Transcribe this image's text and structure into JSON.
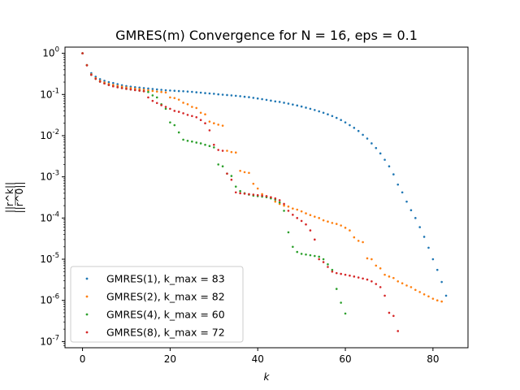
{
  "chart_data": {
    "type": "scatter",
    "title": "GMRES(m) Convergence for N = 16, eps = 0.1",
    "xlabel": "k",
    "ylabel_numerator": "||r^k||",
    "ylabel_denominator": "||r^0||",
    "xlim": [
      -4,
      88
    ],
    "ylim_log10": [
      -7.15,
      0.15
    ],
    "yscale": "log",
    "xticks": [
      0,
      20,
      40,
      60,
      80
    ],
    "yticks_exp": [
      0,
      -1,
      -2,
      -3,
      -4,
      -5,
      -6,
      -7
    ],
    "ytick_base": "10",
    "grid": false,
    "legend_position": "lower-left",
    "series": [
      {
        "name": "GMRES(1), k_max = 83",
        "color": "#1f77b4",
        "x": [
          0,
          1,
          2,
          3,
          4,
          5,
          6,
          7,
          8,
          9,
          10,
          11,
          12,
          13,
          14,
          15,
          16,
          17,
          18,
          19,
          20,
          21,
          22,
          23,
          24,
          25,
          26,
          27,
          28,
          29,
          30,
          31,
          32,
          33,
          34,
          35,
          36,
          37,
          38,
          39,
          40,
          41,
          42,
          43,
          44,
          45,
          46,
          47,
          48,
          49,
          50,
          51,
          52,
          53,
          54,
          55,
          56,
          57,
          58,
          59,
          60,
          61,
          62,
          63,
          64,
          65,
          66,
          67,
          68,
          69,
          70,
          71,
          72,
          73,
          74,
          75,
          76,
          77,
          78,
          79,
          80,
          81,
          82,
          83
        ],
        "y": [
          1.0,
          0.52,
          0.33,
          0.27,
          0.235,
          0.215,
          0.2,
          0.19,
          0.178,
          0.168,
          0.16,
          0.155,
          0.15,
          0.147,
          0.143,
          0.14,
          0.136,
          0.133,
          0.13,
          0.127,
          0.125,
          0.123,
          0.121,
          0.12,
          0.118,
          0.116,
          0.113,
          0.111,
          0.108,
          0.106,
          0.104,
          0.101,
          0.099,
          0.097,
          0.095,
          0.093,
          0.091,
          0.088,
          0.086,
          0.083,
          0.08,
          0.077,
          0.074,
          0.071,
          0.068,
          0.066,
          0.063,
          0.06,
          0.057,
          0.054,
          0.051,
          0.048,
          0.045,
          0.042,
          0.039,
          0.036,
          0.033,
          0.03,
          0.027,
          0.024,
          0.021,
          0.018,
          0.0155,
          0.013,
          0.0105,
          0.0085,
          0.0065,
          0.005,
          0.0037,
          0.0026,
          0.0018,
          0.00115,
          0.00065,
          0.00042,
          0.00025,
          0.000155,
          0.0001,
          6e-05,
          3.5e-05,
          1.9e-05,
          1e-05,
          5.5e-06,
          2.8e-06,
          1.3e-06
        ]
      },
      {
        "name": "GMRES(2), k_max = 82",
        "color": "#ff7f0e",
        "x": [
          0,
          1,
          2,
          3,
          4,
          5,
          6,
          7,
          8,
          9,
          10,
          11,
          12,
          13,
          14,
          15,
          16,
          17,
          18,
          19,
          20,
          21,
          22,
          23,
          24,
          25,
          26,
          27,
          28,
          29,
          30,
          31,
          32,
          33,
          34,
          35,
          36,
          37,
          38,
          39,
          40,
          41,
          42,
          43,
          44,
          45,
          46,
          47,
          48,
          49,
          50,
          51,
          52,
          53,
          54,
          55,
          56,
          57,
          58,
          59,
          60,
          61,
          62,
          63,
          64,
          65,
          66,
          67,
          68,
          69,
          70,
          71,
          72,
          73,
          74,
          75,
          76,
          77,
          78,
          79,
          80,
          81,
          82
        ],
        "y": [
          1.0,
          0.52,
          0.31,
          0.25,
          0.215,
          0.195,
          0.18,
          0.17,
          0.162,
          0.155,
          0.148,
          0.143,
          0.138,
          0.134,
          0.13,
          0.126,
          0.122,
          0.118,
          0.115,
          0.112,
          0.085,
          0.082,
          0.075,
          0.063,
          0.058,
          0.05,
          0.047,
          0.036,
          0.033,
          0.022,
          0.02,
          0.0185,
          0.0175,
          0.0043,
          0.004,
          0.0039,
          0.0014,
          0.0013,
          0.00125,
          0.00068,
          0.00052,
          0.00038,
          0.00034,
          0.00032,
          0.00025,
          0.00022,
          0.0002,
          0.00019,
          0.00017,
          0.00016,
          0.000145,
          0.00013,
          0.000118,
          0.000108,
          0.0001,
          8.8e-05,
          8.2e-05,
          7.6e-05,
          7.2e-05,
          6.6e-05,
          5.8e-05,
          5e-05,
          3.4e-05,
          2.8e-05,
          2.6e-05,
          1.05e-05,
          1e-05,
          7e-06,
          6e-06,
          4.2e-06,
          3.8e-06,
          3.5e-06,
          2.9e-06,
          2.6e-06,
          2.3e-06,
          2.1e-06,
          1.8e-06,
          1.6e-06,
          1.4e-06,
          1.25e-06,
          1.1e-06,
          1e-06,
          9.4e-07
        ]
      },
      {
        "name": "GMRES(4), k_max = 60",
        "color": "#2ca02c",
        "x": [
          0,
          1,
          2,
          3,
          4,
          5,
          6,
          7,
          8,
          9,
          10,
          11,
          12,
          13,
          14,
          15,
          16,
          17,
          18,
          19,
          20,
          21,
          22,
          23,
          24,
          25,
          26,
          27,
          28,
          29,
          30,
          31,
          32,
          33,
          34,
          35,
          36,
          37,
          38,
          39,
          40,
          41,
          42,
          43,
          44,
          45,
          46,
          47,
          48,
          49,
          50,
          51,
          52,
          53,
          54,
          55,
          56,
          57,
          58,
          59,
          60
        ],
        "y": [
          1.0,
          0.51,
          0.3,
          0.24,
          0.205,
          0.185,
          0.17,
          0.158,
          0.15,
          0.143,
          0.137,
          0.132,
          0.128,
          0.124,
          0.12,
          0.115,
          0.095,
          0.085,
          0.058,
          0.045,
          0.021,
          0.018,
          0.012,
          0.008,
          0.0075,
          0.0072,
          0.0068,
          0.0065,
          0.006,
          0.0056,
          0.0052,
          0.002,
          0.0018,
          0.0012,
          0.00105,
          0.00058,
          0.00045,
          0.0004,
          0.00037,
          0.00035,
          0.00034,
          0.00033,
          0.00032,
          0.0003,
          0.00028,
          0.00024,
          0.00015,
          4.5e-05,
          2e-05,
          1.5e-05,
          1.35e-05,
          1.3e-05,
          1.25e-05,
          1.2e-05,
          1.15e-05,
          1e-05,
          7.5e-06,
          5.5e-06,
          1.9e-06,
          8.8e-07,
          4.8e-07
        ]
      },
      {
        "name": "GMRES(8), k_max = 72",
        "color": "#d62728",
        "x": [
          0,
          1,
          2,
          3,
          4,
          5,
          6,
          7,
          8,
          9,
          10,
          11,
          12,
          13,
          14,
          15,
          16,
          17,
          18,
          19,
          20,
          21,
          22,
          23,
          24,
          25,
          26,
          27,
          28,
          29,
          30,
          31,
          32,
          33,
          34,
          35,
          36,
          37,
          38,
          39,
          40,
          41,
          42,
          43,
          44,
          45,
          46,
          47,
          48,
          49,
          50,
          51,
          52,
          53,
          54,
          55,
          56,
          57,
          58,
          59,
          60,
          61,
          62,
          63,
          64,
          65,
          66,
          67,
          68,
          69,
          70,
          71,
          72
        ],
        "y": [
          1.0,
          0.51,
          0.3,
          0.24,
          0.205,
          0.185,
          0.17,
          0.158,
          0.15,
          0.143,
          0.137,
          0.132,
          0.128,
          0.124,
          0.12,
          0.085,
          0.07,
          0.062,
          0.055,
          0.05,
          0.045,
          0.04,
          0.038,
          0.035,
          0.032,
          0.03,
          0.028,
          0.024,
          0.02,
          0.0135,
          0.006,
          0.0045,
          0.0043,
          0.0012,
          0.00085,
          0.00042,
          0.0004,
          0.00039,
          0.00038,
          0.00037,
          0.00036,
          0.00035,
          0.00034,
          0.00032,
          0.0003,
          0.00027,
          0.00022,
          0.00015,
          0.00012,
          0.0001,
          8.5e-05,
          7e-05,
          5e-05,
          3e-05,
          1e-05,
          8.5e-06,
          6.5e-06,
          5e-06,
          4.6e-06,
          4.4e-06,
          4.2e-06,
          4e-06,
          3.8e-06,
          3.6e-06,
          3.4e-06,
          3.2e-06,
          2.9e-06,
          2.5e-06,
          2.1e-06,
          1.3e-06,
          5e-07,
          4.2e-07,
          1.8e-07
        ]
      }
    ]
  }
}
